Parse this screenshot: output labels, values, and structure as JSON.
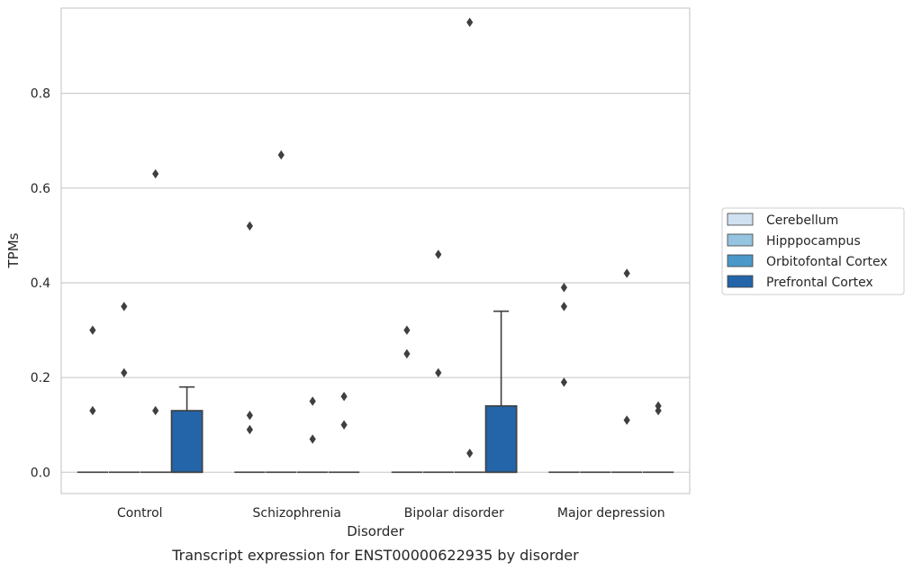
{
  "chart_data": {
    "type": "box",
    "caption": "Transcript expression for ENST00000622935 by disorder",
    "xlabel": "Disorder",
    "ylabel": "TPMs",
    "ylim": [
      -0.045,
      0.98
    ],
    "yticks": [
      "0.0",
      "0.2",
      "0.4",
      "0.6",
      "0.8"
    ],
    "grid": "horizontal",
    "legend_position": "right",
    "categories": [
      "Control",
      "Schizophrenia",
      "Bipolar disorder",
      "Major depression"
    ],
    "series": [
      {
        "name": "Cerebellum",
        "color": "#d0e1f2",
        "boxes": [
          {
            "q1": 0,
            "median": 0,
            "q3": 0,
            "whisker_low": 0,
            "whisker_high": 0,
            "outliers": [
              0.3,
              0.13
            ]
          },
          {
            "q1": 0,
            "median": 0,
            "q3": 0,
            "whisker_low": 0,
            "whisker_high": 0,
            "outliers": [
              0.52,
              0.12,
              0.09
            ]
          },
          {
            "q1": 0,
            "median": 0,
            "q3": 0,
            "whisker_low": 0,
            "whisker_high": 0,
            "outliers": [
              0.3,
              0.25
            ]
          },
          {
            "q1": 0,
            "median": 0,
            "q3": 0,
            "whisker_low": 0,
            "whisker_high": 0,
            "outliers": [
              0.39,
              0.35,
              0.19
            ]
          }
        ]
      },
      {
        "name": "Hipppocampus",
        "color": "#94c4df",
        "boxes": [
          {
            "q1": 0,
            "median": 0,
            "q3": 0,
            "whisker_low": 0,
            "whisker_high": 0,
            "outliers": [
              0.35,
              0.21
            ]
          },
          {
            "q1": 0,
            "median": 0,
            "q3": 0,
            "whisker_low": 0,
            "whisker_high": 0,
            "outliers": [
              0.67
            ]
          },
          {
            "q1": 0,
            "median": 0,
            "q3": 0,
            "whisker_low": 0,
            "whisker_high": 0,
            "outliers": [
              0.46,
              0.21
            ]
          },
          {
            "q1": 0,
            "median": 0,
            "q3": 0,
            "whisker_low": 0,
            "whisker_high": 0,
            "outliers": []
          }
        ]
      },
      {
        "name": "Orbitofontal Cortex",
        "color": "#4a98c9",
        "boxes": [
          {
            "q1": 0,
            "median": 0,
            "q3": 0,
            "whisker_low": 0,
            "whisker_high": 0,
            "outliers": [
              0.63,
              0.13
            ]
          },
          {
            "q1": 0,
            "median": 0,
            "q3": 0,
            "whisker_low": 0,
            "whisker_high": 0,
            "outliers": [
              0.15,
              0.07
            ]
          },
          {
            "q1": 0,
            "median": 0,
            "q3": 0,
            "whisker_low": 0,
            "whisker_high": 0,
            "outliers": [
              0.95,
              0.04
            ]
          },
          {
            "q1": 0,
            "median": 0,
            "q3": 0,
            "whisker_low": 0,
            "whisker_high": 0,
            "outliers": [
              0.42,
              0.11
            ]
          }
        ]
      },
      {
        "name": "Prefrontal Cortex",
        "color": "#2365a8",
        "boxes": [
          {
            "q1": 0,
            "median": 0,
            "q3": 0.13,
            "whisker_low": 0,
            "whisker_high": 0.18,
            "outliers": []
          },
          {
            "q1": 0,
            "median": 0,
            "q3": 0,
            "whisker_low": 0,
            "whisker_high": 0,
            "outliers": [
              0.16,
              0.1
            ]
          },
          {
            "q1": 0,
            "median": 0,
            "q3": 0.14,
            "whisker_low": 0,
            "whisker_high": 0.34,
            "outliers": []
          },
          {
            "q1": 0,
            "median": 0,
            "q3": 0,
            "whisker_low": 0,
            "whisker_high": 0,
            "outliers": [
              0.14,
              0.13
            ]
          }
        ]
      }
    ]
  }
}
